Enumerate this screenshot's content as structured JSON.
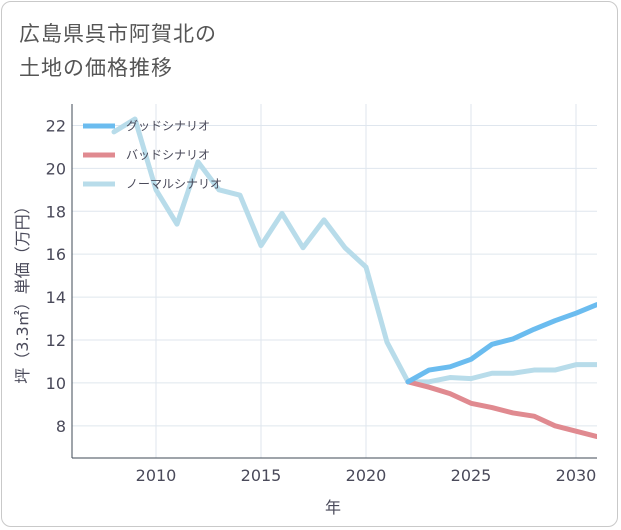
{
  "title_lines": [
    "広島県呉市阿賀北の",
    "土地の価格推移"
  ],
  "chart_data": {
    "type": "line",
    "xlabel": "年",
    "ylabel": "坪（3.3㎡）単価（万円）",
    "xlim": [
      2006,
      2031
    ],
    "ylim": [
      6.5,
      23
    ],
    "xticks": [
      2010,
      2015,
      2020,
      2025,
      2030
    ],
    "yticks": [
      8,
      10,
      12,
      14,
      16,
      18,
      20,
      22
    ],
    "grid": true,
    "legend_position": "top-left",
    "series": [
      {
        "name": "グッドシナリオ",
        "color": "#6bbcef",
        "x": [
          2022,
          2023,
          2024,
          2025,
          2026,
          2027,
          2028,
          2029,
          2030,
          2031
        ],
        "y": [
          10.05,
          10.6,
          10.75,
          11.1,
          11.8,
          12.05,
          12.5,
          12.9,
          13.25,
          13.65
        ]
      },
      {
        "name": "バッドシナリオ",
        "color": "#e08a90",
        "x": [
          2022,
          2023,
          2024,
          2025,
          2026,
          2027,
          2028,
          2029,
          2030,
          2031
        ],
        "y": [
          10.05,
          9.8,
          9.5,
          9.05,
          8.85,
          8.6,
          8.45,
          8.0,
          7.75,
          7.5
        ]
      },
      {
        "name": "ノーマルシナリオ",
        "color": "#b8dcea",
        "x": [
          2008,
          2009,
          2010,
          2011,
          2012,
          2013,
          2014,
          2015,
          2016,
          2017,
          2018,
          2019,
          2020,
          2021,
          2022,
          2023,
          2024,
          2025,
          2026,
          2027,
          2028,
          2029,
          2030,
          2031
        ],
        "y": [
          21.7,
          22.3,
          19.0,
          17.4,
          20.3,
          19.0,
          18.75,
          16.4,
          17.9,
          16.3,
          17.6,
          16.3,
          15.4,
          11.9,
          10.05,
          10.05,
          10.25,
          10.2,
          10.45,
          10.45,
          10.6,
          10.6,
          10.85,
          10.85
        ]
      }
    ]
  }
}
